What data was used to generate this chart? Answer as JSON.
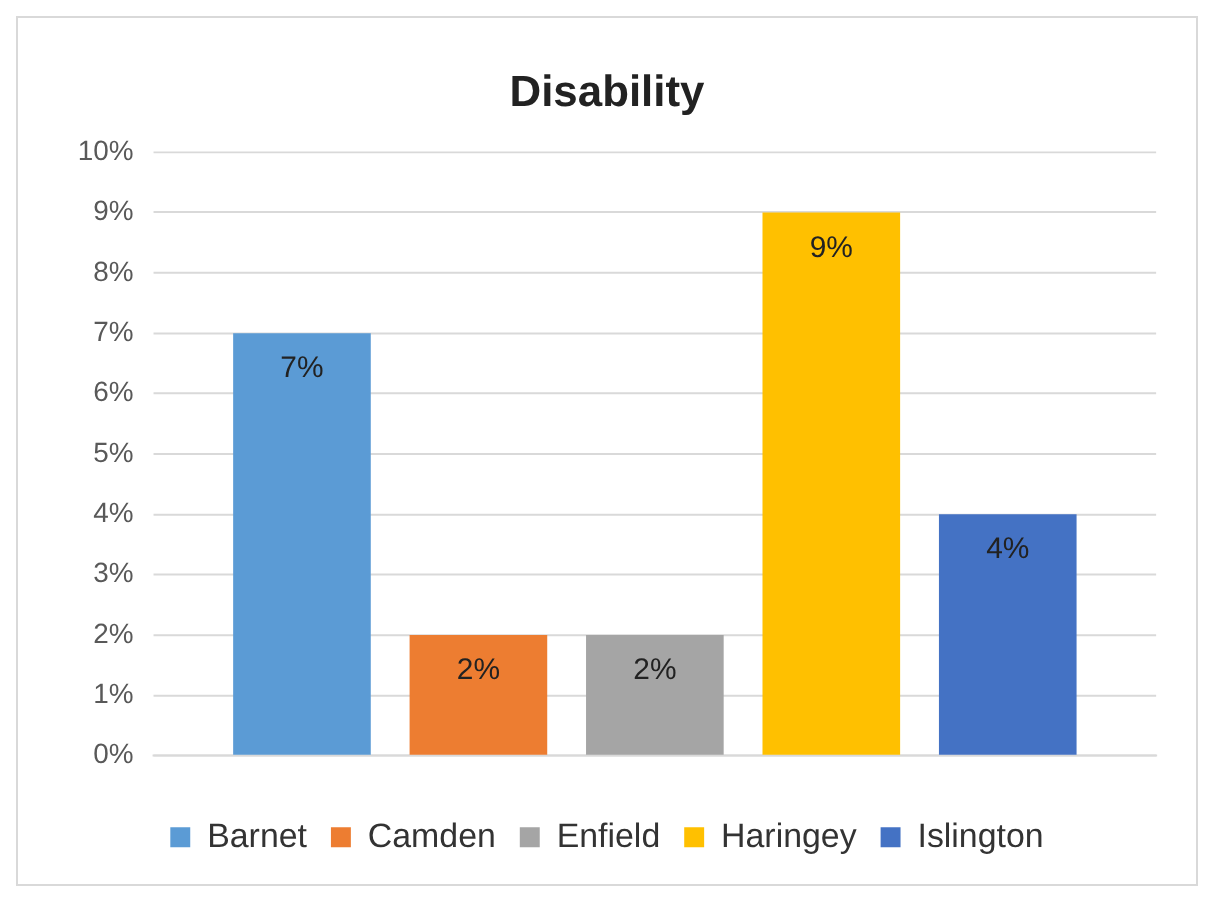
{
  "chart_data": {
    "type": "bar",
    "title": "Disability",
    "categories": [
      null
    ],
    "series": [
      {
        "name": "Barnet",
        "color": "#5b9bd5",
        "values": [
          7
        ],
        "value_labels": [
          "7%"
        ]
      },
      {
        "name": "Camden",
        "color": "#ed7d31",
        "values": [
          2
        ],
        "value_labels": [
          "2%"
        ]
      },
      {
        "name": "Enfield",
        "color": "#a5a5a5",
        "values": [
          2
        ],
        "value_labels": [
          "2%"
        ]
      },
      {
        "name": "Haringey",
        "color": "#ffc000",
        "values": [
          9
        ],
        "value_labels": [
          "9%"
        ]
      },
      {
        "name": "Islington",
        "color": "#4472c4",
        "values": [
          4
        ],
        "value_labels": [
          "4%"
        ]
      }
    ],
    "ylim": [
      0,
      10
    ],
    "yticks": [
      {
        "value": 0,
        "label": "0%"
      },
      {
        "value": 1,
        "label": "1%"
      },
      {
        "value": 2,
        "label": "2%"
      },
      {
        "value": 3,
        "label": "3%"
      },
      {
        "value": 4,
        "label": "4%"
      },
      {
        "value": 5,
        "label": "5%"
      },
      {
        "value": 6,
        "label": "6%"
      },
      {
        "value": 7,
        "label": "7%"
      },
      {
        "value": 8,
        "label": "8%"
      },
      {
        "value": 9,
        "label": "9%"
      },
      {
        "value": 10,
        "label": "10%"
      }
    ],
    "grid": "y",
    "legend": "bottom"
  }
}
